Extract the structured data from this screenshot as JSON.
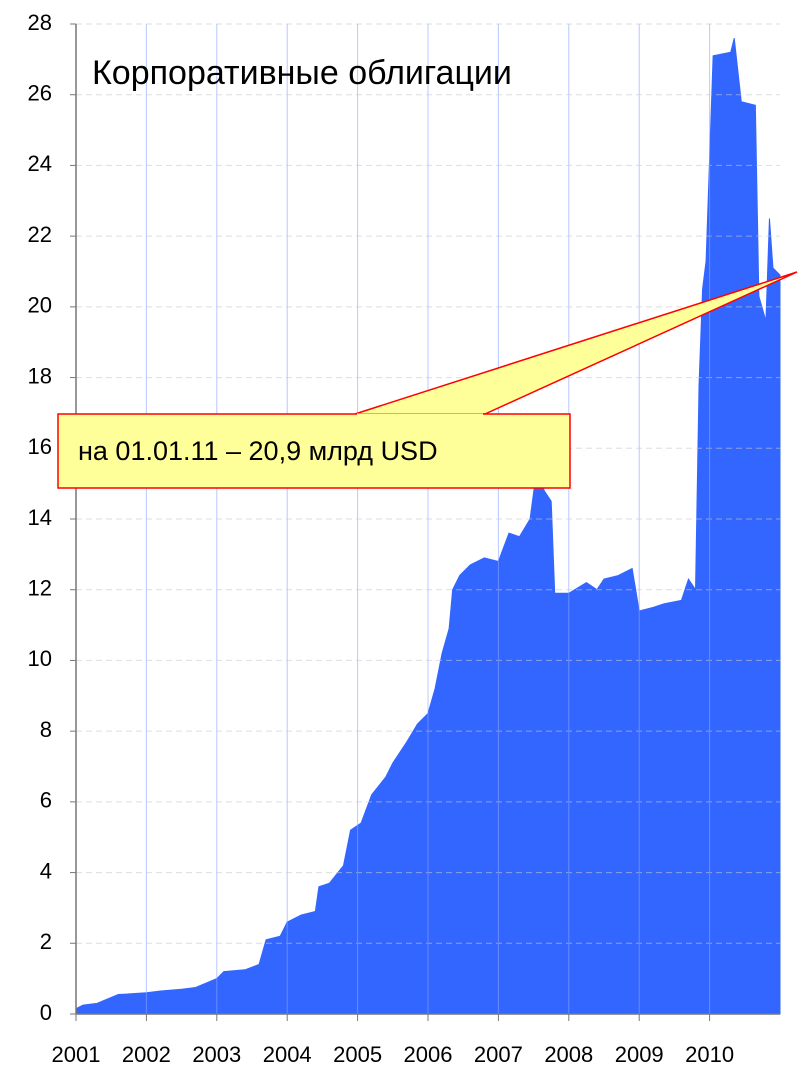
{
  "chart_data": {
    "type": "area",
    "title": "Корпоративные облигации",
    "annotation": "на 01.01.11 – 20,9 млрд USD",
    "color": "#3366ff",
    "grid": true,
    "xlim": [
      2001,
      2011
    ],
    "xticks": [
      2001,
      2002,
      2003,
      2004,
      2005,
      2006,
      2007,
      2008,
      2009,
      2010
    ],
    "ylim": [
      0,
      28
    ],
    "yticks": [
      0,
      2,
      4,
      6,
      8,
      10,
      12,
      14,
      16,
      18,
      20,
      22,
      24,
      26,
      28
    ],
    "x": [
      2001.0,
      2001.1,
      2001.3,
      2001.6,
      2002.0,
      2002.2,
      2002.5,
      2002.7,
      2003.0,
      2003.1,
      2003.4,
      2003.6,
      2003.7,
      2003.9,
      2004.0,
      2004.2,
      2004.4,
      2004.45,
      2004.6,
      2004.8,
      2004.9,
      2005.05,
      2005.2,
      2005.4,
      2005.5,
      2005.7,
      2005.85,
      2006.0,
      2006.1,
      2006.2,
      2006.3,
      2006.35,
      2006.45,
      2006.6,
      2006.8,
      2007.0,
      2007.15,
      2007.3,
      2007.45,
      2007.55,
      2007.65,
      2007.75,
      2007.8,
      2008.0,
      2008.25,
      2008.4,
      2008.5,
      2008.7,
      2008.9,
      2009.0,
      2009.2,
      2009.35,
      2009.6,
      2009.7,
      2009.8,
      2009.85,
      2009.9,
      2009.95,
      2010.05,
      2010.3,
      2010.35,
      2010.45,
      2010.65,
      2010.7,
      2010.8,
      2010.85,
      2010.9,
      2011.0
    ],
    "values": [
      0.15,
      0.25,
      0.3,
      0.55,
      0.6,
      0.65,
      0.7,
      0.75,
      1.0,
      1.2,
      1.25,
      1.4,
      2.1,
      2.2,
      2.6,
      2.8,
      2.9,
      3.6,
      3.7,
      4.2,
      5.2,
      5.4,
      6.2,
      6.7,
      7.1,
      7.7,
      8.2,
      8.5,
      9.2,
      10.2,
      10.9,
      12.0,
      12.4,
      12.7,
      12.9,
      12.8,
      13.6,
      13.5,
      14.0,
      15.5,
      14.8,
      14.5,
      11.9,
      11.9,
      12.2,
      12.0,
      12.3,
      12.4,
      12.6,
      11.4,
      11.5,
      11.6,
      11.7,
      12.3,
      12.0,
      17.8,
      20.5,
      21.3,
      27.1,
      27.2,
      27.6,
      25.8,
      25.7,
      20.3,
      19.6,
      22.5,
      21.1,
      20.9
    ]
  }
}
